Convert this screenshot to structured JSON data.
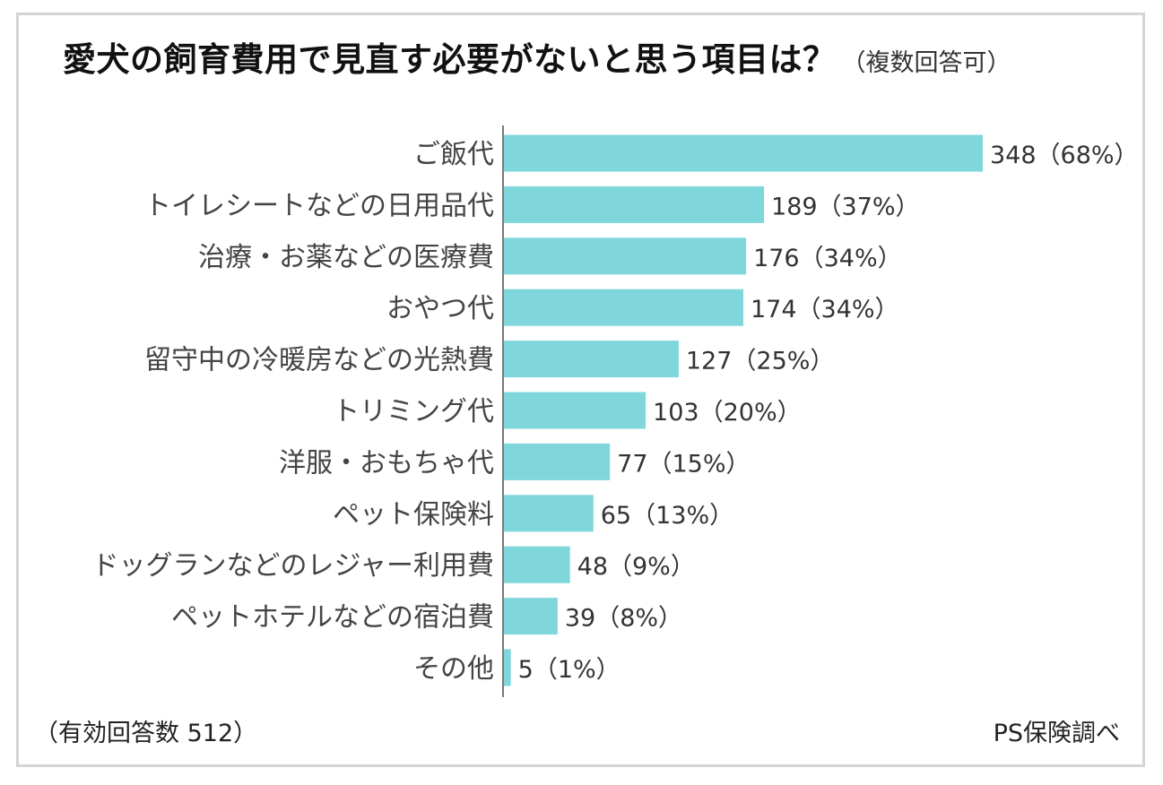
{
  "chart_data": {
    "type": "bar",
    "orientation": "horizontal",
    "title": "愛犬の飼育費用で見直す必要がないと思う項目は？",
    "subtitle": "（複数回答可）",
    "xlabel": "",
    "ylabel": "",
    "xlim": [
      0,
      348
    ],
    "grid": false,
    "legend": "none",
    "bar_color": "#7fd7dc",
    "categories": [
      "ご飯代",
      "トイレシートなどの日用品代",
      "治療・お薬などの医療費",
      "おやつ代",
      "留守中の冷暖房などの光熱費",
      "トリミング代",
      "洋服・おもちゃ代",
      "ペット保険料",
      "ドッグランなどのレジャー利用費",
      "ペットホテルなどの宿泊費",
      "その他"
    ],
    "values": [
      348,
      189,
      176,
      174,
      127,
      103,
      77,
      65,
      48,
      39,
      5
    ],
    "value_labels": [
      "348（68%）",
      "189（37%）",
      "176（34%）",
      "174（34%）",
      "127（25%）",
      "103（20%）",
      "77（15%）",
      "65（13%）",
      "48（9%）",
      "39（8%）",
      "5（1%）"
    ]
  },
  "footer": {
    "sample_note": "（有効回答数 512）",
    "source": "PS保険調べ"
  }
}
